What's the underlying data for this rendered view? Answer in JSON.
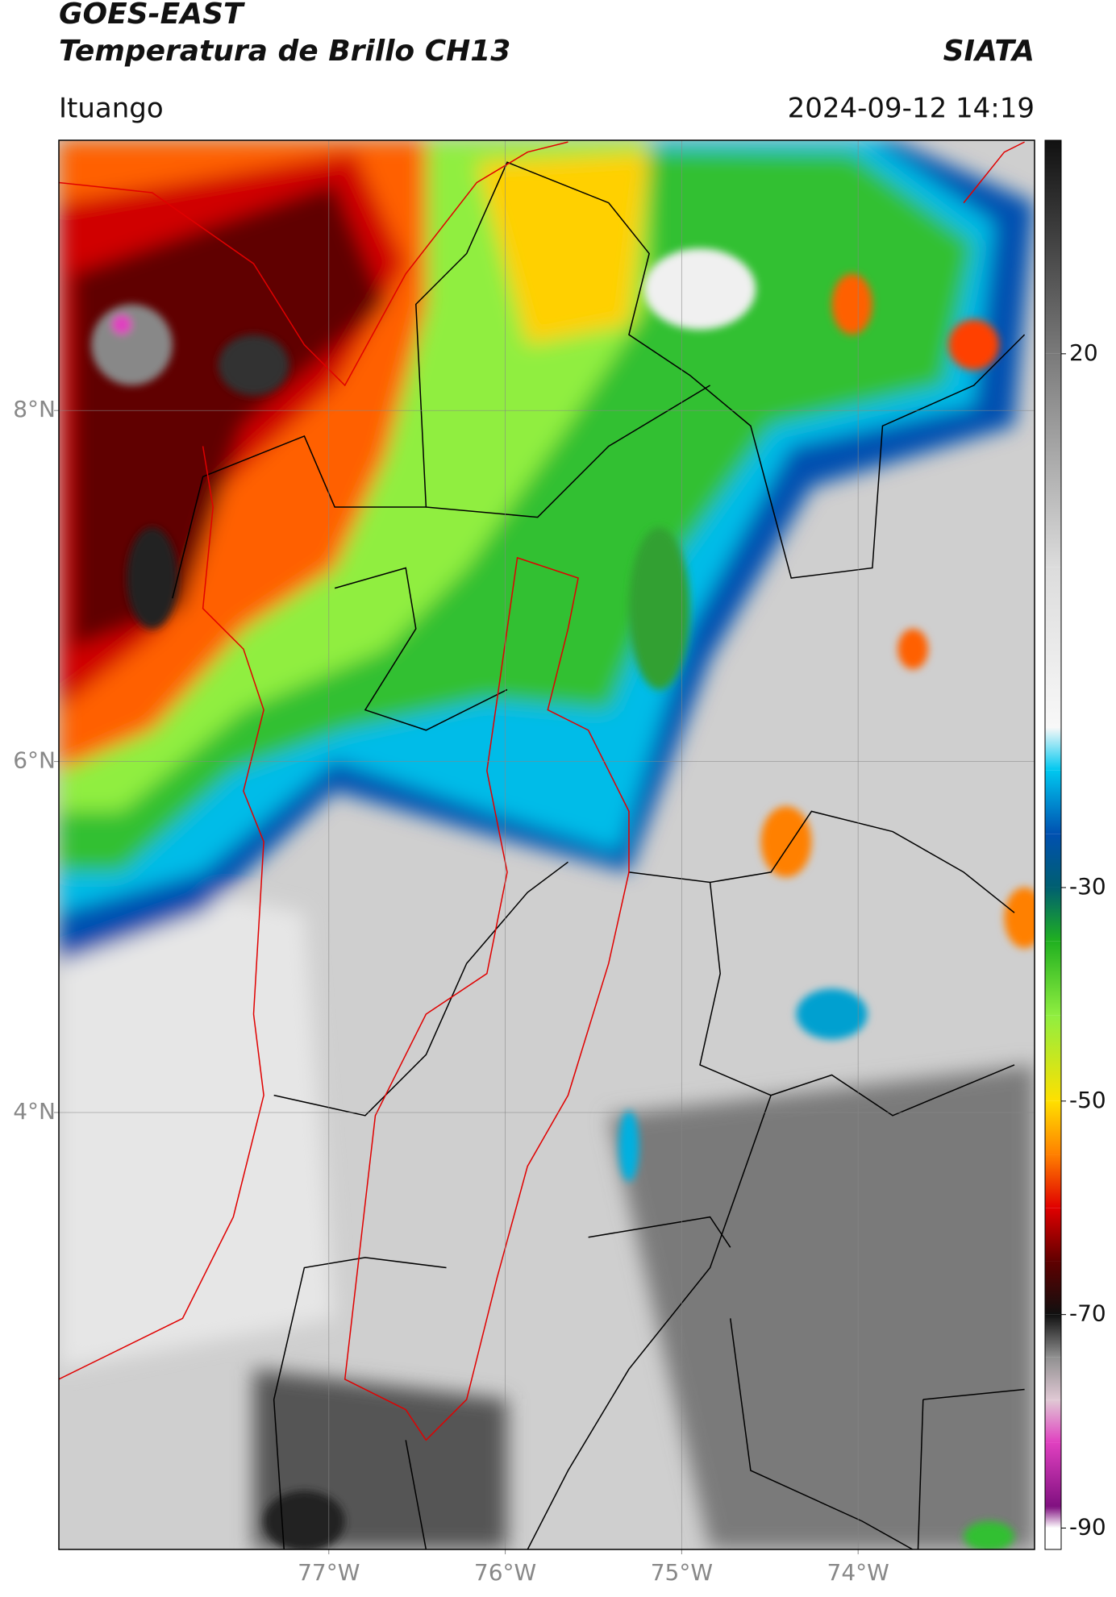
{
  "chart_data": {
    "type": "map",
    "title": "GOES-EAST",
    "subtitle": "Temperatura de Brillo CH13",
    "source": "SIATA",
    "location": "Ituango",
    "datetime": "2024-09-12 14:19",
    "xlim": [
      -78.53,
      -73.0
    ],
    "ylim": [
      1.51,
      9.54
    ],
    "xticks": [
      {
        "value": -77,
        "label": "77°W"
      },
      {
        "value": -76,
        "label": "76°W"
      },
      {
        "value": -75,
        "label": "75°W"
      },
      {
        "value": -74,
        "label": "74°W"
      }
    ],
    "yticks": [
      {
        "value": 8,
        "label": "8°N"
      },
      {
        "value": 6,
        "label": "6°N"
      },
      {
        "value": 4,
        "label": "4°N"
      }
    ],
    "grid": true,
    "colorbar": {
      "lim": [
        -92,
        40
      ],
      "ticks": [
        20,
        -30,
        -50,
        -70,
        -90
      ],
      "stops": [
        {
          "value": 40,
          "color": "#111111"
        },
        {
          "value": 20,
          "color": "#7a7a7a"
        },
        {
          "value": 0,
          "color": "#dcdcdc"
        },
        {
          "value": -15,
          "color": "#f8f8f8"
        },
        {
          "value": -19,
          "color": "#00c8f0"
        },
        {
          "value": -25,
          "color": "#0050b0"
        },
        {
          "value": -30,
          "color": "#005f70"
        },
        {
          "value": -35,
          "color": "#20b020"
        },
        {
          "value": -42,
          "color": "#90ee40"
        },
        {
          "value": -50,
          "color": "#ffe000"
        },
        {
          "value": -55,
          "color": "#ff8000"
        },
        {
          "value": -60,
          "color": "#e00000"
        },
        {
          "value": -65,
          "color": "#600000"
        },
        {
          "value": -70,
          "color": "#101010"
        },
        {
          "value": -74,
          "color": "#909090"
        },
        {
          "value": -78,
          "color": "#e0c8d4"
        },
        {
          "value": -82,
          "color": "#e040c0"
        },
        {
          "value": -88,
          "color": "#801080"
        },
        {
          "value": -90,
          "color": "#ffffff"
        }
      ]
    }
  }
}
